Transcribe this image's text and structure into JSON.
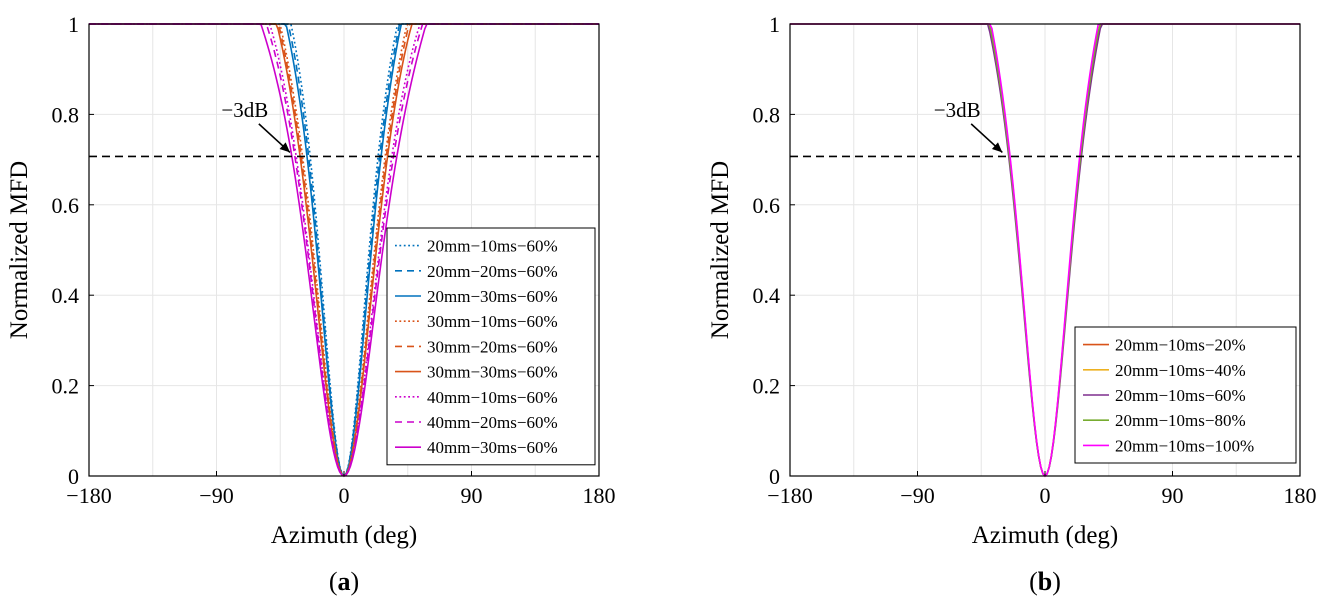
{
  "chart_data": [
    {
      "type": "line",
      "panel_label": "(a)",
      "panel_letter": "a",
      "xlabel": "Azimuth (deg)",
      "ylabel": "Normalized MFD",
      "xlim": [
        -180,
        180
      ],
      "ylim": [
        0,
        1
      ],
      "xticks": [
        -180,
        -90,
        0,
        90,
        180
      ],
      "xtick_labels": [
        "−180",
        "−90",
        "0",
        "90",
        "180"
      ],
      "yticks": [
        0,
        0.2,
        0.4,
        0.6,
        0.8,
        1
      ],
      "ytick_labels": [
        "0",
        "0.2",
        "0.4",
        "0.6",
        "0.8",
        "1"
      ],
      "grid": true,
      "reference_line": {
        "y": 0.707,
        "style": "dashed",
        "color": "#000000"
      },
      "annotation": {
        "text": "−3dB",
        "x": -36,
        "y": 0.707,
        "text_x": -70,
        "text_y": 0.81
      },
      "legend_position": "bottom-right",
      "series": [
        {
          "name": "20mm−10ms−60%",
          "color": "#0072BD",
          "dash": "dotted",
          "halfwidth": 24
        },
        {
          "name": "20mm−20ms−60%",
          "color": "#0072BD",
          "dash": "dashed",
          "halfwidth": 25
        },
        {
          "name": "20mm−30ms−60%",
          "color": "#0072BD",
          "dash": "solid",
          "halfwidth": 26
        },
        {
          "name": "30mm−10ms−60%",
          "color": "#D95319",
          "dash": "dotted",
          "halfwidth": 29
        },
        {
          "name": "30mm−20ms−60%",
          "color": "#D95319",
          "dash": "dashed",
          "halfwidth": 30
        },
        {
          "name": "30mm−30ms−60%",
          "color": "#D95319",
          "dash": "solid",
          "halfwidth": 31
        },
        {
          "name": "40mm−10ms−60%",
          "color": "#CC00CC",
          "dash": "dotted",
          "halfwidth": 34
        },
        {
          "name": "40mm−20ms−60%",
          "color": "#CC00CC",
          "dash": "dashed",
          "halfwidth": 35
        },
        {
          "name": "40mm−30ms−60%",
          "color": "#CC00CC",
          "dash": "solid",
          "halfwidth": 37
        }
      ]
    },
    {
      "type": "line",
      "panel_label": "(b)",
      "panel_letter": "b",
      "xlabel": "Azimuth (deg)",
      "ylabel": "Normalized MFD",
      "xlim": [
        -180,
        180
      ],
      "ylim": [
        0,
        1
      ],
      "xticks": [
        -180,
        -90,
        0,
        90,
        180
      ],
      "xtick_labels": [
        "−180",
        "−90",
        "0",
        "90",
        "180"
      ],
      "yticks": [
        0,
        0.2,
        0.4,
        0.6,
        0.8,
        1
      ],
      "ytick_labels": [
        "0",
        "0.2",
        "0.4",
        "0.6",
        "0.8",
        "1"
      ],
      "grid": true,
      "reference_line": {
        "y": 0.707,
        "style": "dashed",
        "color": "#000000"
      },
      "annotation": {
        "text": "−3dB",
        "x": -28,
        "y": 0.707,
        "text_x": -62,
        "text_y": 0.81
      },
      "legend_position": "bottom-right",
      "series": [
        {
          "name": "20mm−10ms−20%",
          "color": "#D95319",
          "dash": "solid",
          "halfwidth": 25
        },
        {
          "name": "20mm−10ms−40%",
          "color": "#EDB120",
          "dash": "solid",
          "halfwidth": 25
        },
        {
          "name": "20mm−10ms−60%",
          "color": "#7E2F8E",
          "dash": "solid",
          "halfwidth": 25.5
        },
        {
          "name": "20mm−10ms−80%",
          "color": "#77AC30",
          "dash": "solid",
          "halfwidth": 25
        },
        {
          "name": "20mm−10ms−100%",
          "color": "#FF00FF",
          "dash": "solid",
          "halfwidth": 24.5
        }
      ]
    }
  ]
}
